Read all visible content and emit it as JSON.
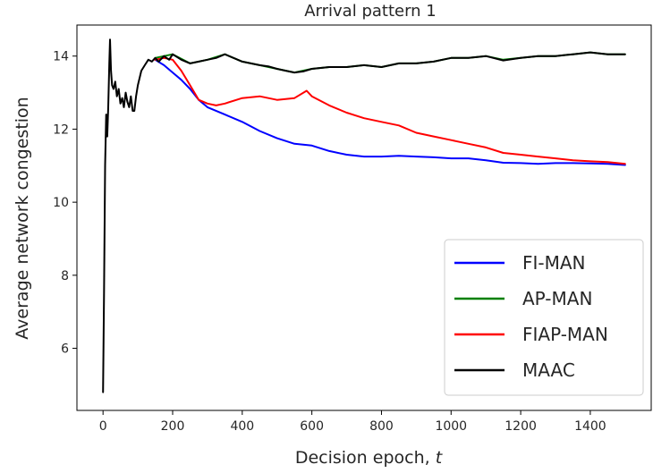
{
  "chart_data": {
    "type": "line",
    "title": "Arrival pattern 1",
    "xlabel": "Decision epoch, ",
    "xlabel_var": "t",
    "ylabel": "Average network congestion",
    "xlim": [
      -75,
      1575
    ],
    "ylim": [
      4.3,
      14.85
    ],
    "xticks": [
      0,
      200,
      400,
      600,
      800,
      1000,
      1200,
      1400
    ],
    "yticks": [
      6,
      8,
      10,
      12,
      14
    ],
    "grid": false,
    "legend_position": "lower-right",
    "series": [
      {
        "name": "FI-MAN",
        "color": "#0000ff",
        "points": [
          [
            150,
            13.9
          ],
          [
            175,
            13.75
          ],
          [
            200,
            13.55
          ],
          [
            225,
            13.35
          ],
          [
            250,
            13.1
          ],
          [
            275,
            12.8
          ],
          [
            300,
            12.6
          ],
          [
            350,
            12.4
          ],
          [
            400,
            12.2
          ],
          [
            450,
            11.95
          ],
          [
            500,
            11.75
          ],
          [
            550,
            11.6
          ],
          [
            600,
            11.55
          ],
          [
            650,
            11.4
          ],
          [
            700,
            11.3
          ],
          [
            750,
            11.25
          ],
          [
            800,
            11.25
          ],
          [
            850,
            11.27
          ],
          [
            900,
            11.25
          ],
          [
            950,
            11.23
          ],
          [
            1000,
            11.2
          ],
          [
            1050,
            11.2
          ],
          [
            1100,
            11.15
          ],
          [
            1150,
            11.08
          ],
          [
            1200,
            11.07
          ],
          [
            1250,
            11.05
          ],
          [
            1300,
            11.07
          ],
          [
            1350,
            11.07
          ],
          [
            1400,
            11.06
          ],
          [
            1450,
            11.05
          ],
          [
            1500,
            11.02
          ]
        ]
      },
      {
        "name": "AP-MAN",
        "color": "#008000",
        "points": [
          [
            150,
            13.95
          ],
          [
            200,
            14.05
          ],
          [
            250,
            13.8
          ],
          [
            300,
            13.9
          ],
          [
            350,
            14.05
          ],
          [
            400,
            13.85
          ],
          [
            450,
            13.75
          ],
          [
            500,
            13.65
          ],
          [
            550,
            13.55
          ],
          [
            600,
            13.65
          ],
          [
            650,
            13.7
          ],
          [
            700,
            13.7
          ],
          [
            750,
            13.75
          ],
          [
            800,
            13.7
          ],
          [
            850,
            13.8
          ],
          [
            900,
            13.8
          ],
          [
            950,
            13.85
          ],
          [
            1000,
            13.95
          ],
          [
            1050,
            13.95
          ],
          [
            1100,
            14.0
          ],
          [
            1150,
            13.9
          ],
          [
            1200,
            13.95
          ],
          [
            1250,
            14.0
          ],
          [
            1300,
            14.0
          ],
          [
            1350,
            14.05
          ],
          [
            1400,
            14.1
          ],
          [
            1450,
            14.05
          ],
          [
            1500,
            14.05
          ]
        ]
      },
      {
        "name": "FIAP-MAN",
        "color": "#ff0000",
        "points": [
          [
            150,
            13.9
          ],
          [
            175,
            13.95
          ],
          [
            200,
            13.9
          ],
          [
            225,
            13.6
          ],
          [
            250,
            13.2
          ],
          [
            275,
            12.8
          ],
          [
            300,
            12.7
          ],
          [
            325,
            12.65
          ],
          [
            350,
            12.7
          ],
          [
            400,
            12.85
          ],
          [
            450,
            12.9
          ],
          [
            500,
            12.8
          ],
          [
            550,
            12.85
          ],
          [
            585,
            13.05
          ],
          [
            600,
            12.9
          ],
          [
            650,
            12.65
          ],
          [
            700,
            12.45
          ],
          [
            750,
            12.3
          ],
          [
            800,
            12.2
          ],
          [
            850,
            12.1
          ],
          [
            900,
            11.9
          ],
          [
            950,
            11.8
          ],
          [
            1000,
            11.7
          ],
          [
            1050,
            11.6
          ],
          [
            1100,
            11.5
          ],
          [
            1150,
            11.35
          ],
          [
            1200,
            11.3
          ],
          [
            1250,
            11.25
          ],
          [
            1300,
            11.2
          ],
          [
            1350,
            11.15
          ],
          [
            1400,
            11.12
          ],
          [
            1450,
            11.1
          ],
          [
            1500,
            11.05
          ]
        ]
      },
      {
        "name": "MAAC",
        "color": "#000000",
        "points": [
          [
            0,
            4.8
          ],
          [
            3,
            7.5
          ],
          [
            6,
            11.0
          ],
          [
            9,
            12.4
          ],
          [
            12,
            11.8
          ],
          [
            15,
            12.6
          ],
          [
            18,
            13.8
          ],
          [
            20,
            14.45
          ],
          [
            23,
            13.6
          ],
          [
            26,
            13.2
          ],
          [
            30,
            13.1
          ],
          [
            35,
            13.3
          ],
          [
            40,
            12.9
          ],
          [
            45,
            13.1
          ],
          [
            50,
            12.7
          ],
          [
            55,
            12.85
          ],
          [
            60,
            12.6
          ],
          [
            65,
            13.0
          ],
          [
            70,
            12.75
          ],
          [
            75,
            12.6
          ],
          [
            80,
            12.9
          ],
          [
            85,
            12.5
          ],
          [
            90,
            12.5
          ],
          [
            95,
            12.9
          ],
          [
            100,
            13.2
          ],
          [
            110,
            13.6
          ],
          [
            120,
            13.75
          ],
          [
            130,
            13.9
          ],
          [
            140,
            13.85
          ],
          [
            150,
            13.95
          ],
          [
            160,
            13.85
          ],
          [
            175,
            14.0
          ],
          [
            190,
            13.9
          ],
          [
            200,
            14.05
          ],
          [
            225,
            13.9
          ],
          [
            250,
            13.8
          ],
          [
            275,
            13.85
          ],
          [
            300,
            13.9
          ],
          [
            325,
            13.95
          ],
          [
            350,
            14.05
          ],
          [
            375,
            13.95
          ],
          [
            400,
            13.85
          ],
          [
            425,
            13.8
          ],
          [
            450,
            13.75
          ],
          [
            475,
            13.72
          ],
          [
            500,
            13.65
          ],
          [
            525,
            13.6
          ],
          [
            550,
            13.55
          ],
          [
            575,
            13.58
          ],
          [
            600,
            13.65
          ],
          [
            650,
            13.7
          ],
          [
            700,
            13.7
          ],
          [
            750,
            13.75
          ],
          [
            800,
            13.7
          ],
          [
            850,
            13.8
          ],
          [
            900,
            13.8
          ],
          [
            950,
            13.85
          ],
          [
            1000,
            13.95
          ],
          [
            1050,
            13.95
          ],
          [
            1100,
            14.0
          ],
          [
            1150,
            13.88
          ],
          [
            1200,
            13.95
          ],
          [
            1250,
            14.0
          ],
          [
            1300,
            14.0
          ],
          [
            1350,
            14.05
          ],
          [
            1400,
            14.1
          ],
          [
            1450,
            14.05
          ],
          [
            1500,
            14.05
          ]
        ]
      }
    ]
  }
}
